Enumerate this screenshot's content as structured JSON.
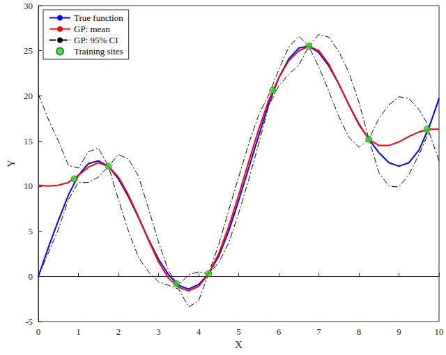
{
  "chart_data": {
    "type": "line",
    "x_label": "X",
    "y_label": "Y",
    "xlim": [
      0,
      10
    ],
    "xticks": [
      0,
      1,
      2,
      3,
      4,
      5,
      6,
      7,
      8,
      9,
      10
    ],
    "ylim": [
      -5,
      30
    ],
    "yticks": [
      -5,
      0,
      5,
      10,
      15,
      20,
      25,
      30
    ],
    "grid": false,
    "legend": "upper left",
    "x": [
      0,
      0.25,
      0.5,
      0.75,
      1,
      1.25,
      1.5,
      1.75,
      2,
      2.25,
      2.5,
      2.75,
      3,
      3.25,
      3.5,
      3.75,
      4,
      4.25,
      4.5,
      4.75,
      5,
      5.25,
      5.5,
      5.75,
      6,
      6.25,
      6.5,
      6.75,
      7,
      7.25,
      7.5,
      7.75,
      8,
      8.25,
      8.5,
      8.75,
      9,
      9.25,
      9.5,
      9.75,
      10
    ],
    "series": [
      {
        "name": "True function",
        "type": "line",
        "color": "#0000ff",
        "line_style": "solid",
        "values": [
          0,
          3.2,
          6.2,
          9.0,
          11.2,
          12.5,
          12.8,
          12.2,
          10.8,
          8.8,
          6.5,
          4.1,
          1.9,
          0.2,
          -1.0,
          -1.4,
          -0.9,
          0.3,
          2.2,
          5.0,
          8.4,
          12.0,
          15.6,
          19.1,
          22.0,
          24.1,
          25.3,
          25.5,
          24.8,
          23.3,
          21.3,
          19.0,
          16.9,
          15.2,
          13.7,
          12.6,
          12.2,
          12.6,
          14.0,
          16.5,
          19.7
        ]
      },
      {
        "name": "GP: mean",
        "type": "line",
        "color": "#ff0000",
        "line_style": "solid",
        "values": [
          10.1,
          10.0,
          10.1,
          10.4,
          11.2,
          12.1,
          12.6,
          12.2,
          11.0,
          9.0,
          6.6,
          4.0,
          1.6,
          -0.2,
          -1.2,
          -1.6,
          -1.1,
          0.3,
          2.5,
          5.5,
          9.0,
          12.7,
          16.3,
          19.5,
          22.0,
          23.9,
          25.0,
          25.5,
          25.0,
          23.5,
          21.3,
          19.0,
          16.8,
          15.2,
          14.5,
          14.5,
          14.9,
          15.5,
          16.0,
          16.3,
          16.3
        ]
      },
      {
        "name": "GP: 95% CI",
        "type": "band",
        "color": "#000000",
        "line_style": "dashdot",
        "upper": [
          20.2,
          17.4,
          15.0,
          12.3,
          12.0,
          13.8,
          14.2,
          12.2,
          13.5,
          13.0,
          11.1,
          7.5,
          3.8,
          0.6,
          -1.0,
          0.2,
          0.5,
          0.3,
          3.5,
          7.3,
          11.0,
          14.7,
          17.9,
          20.1,
          22.9,
          25.4,
          26.6,
          25.5,
          26.8,
          26.5,
          24.9,
          22.6,
          19.3,
          15.2,
          17.5,
          19.0,
          19.9,
          19.7,
          18.5,
          16.6,
          19.8
        ],
        "lower": [
          0.0,
          2.6,
          5.2,
          8.5,
          10.4,
          10.4,
          11.0,
          12.2,
          8.5,
          5.0,
          2.1,
          0.5,
          -0.6,
          -1.0,
          -1.4,
          -3.4,
          -2.7,
          0.3,
          1.5,
          3.7,
          7.0,
          10.7,
          14.7,
          18.9,
          21.1,
          22.4,
          23.4,
          25.5,
          23.2,
          20.5,
          17.7,
          15.4,
          14.3,
          15.2,
          11.5,
          10.0,
          9.9,
          11.3,
          13.5,
          16.0,
          12.8
        ]
      },
      {
        "name": "Training sites",
        "type": "scatter",
        "color": "#22dd22",
        "marker": "circle",
        "x": [
          0.9,
          1.75,
          3.45,
          4.25,
          5.85,
          6.75,
          8.25,
          9.7
        ],
        "values": [
          10.8,
          12.2,
          -0.8,
          0.3,
          20.6,
          25.5,
          15.2,
          16.3
        ]
      }
    ]
  }
}
